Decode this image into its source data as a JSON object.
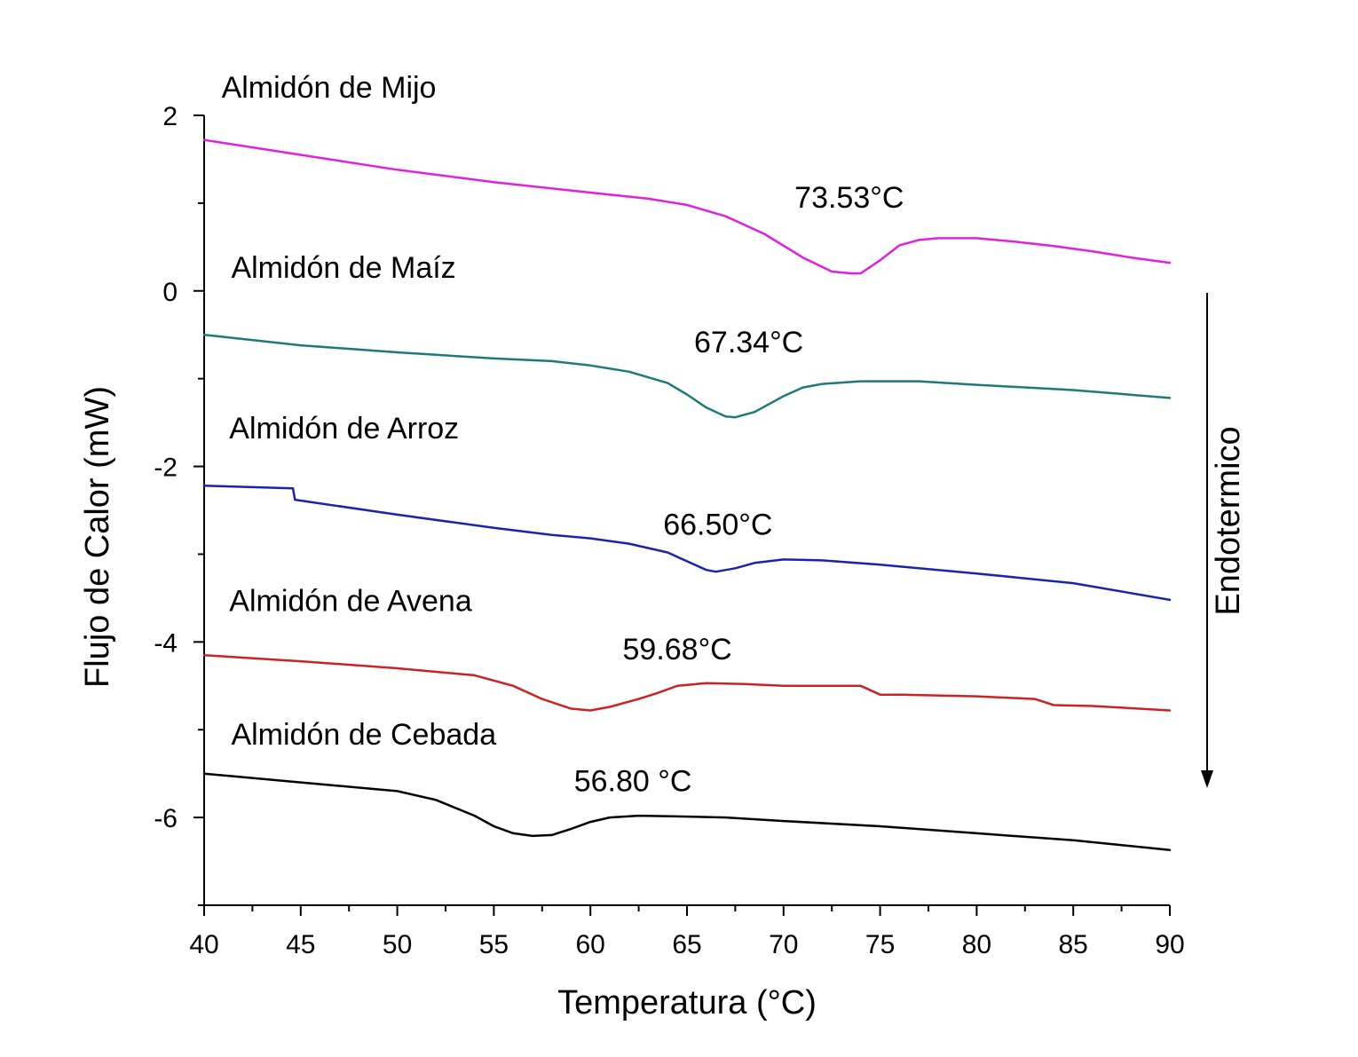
{
  "chart_data": {
    "type": "line",
    "xlabel": "Temperatura (°C)",
    "ylabel": "Flujo de Calor (mW)",
    "xlim": [
      40,
      90
    ],
    "ylim": [
      -7,
      2
    ],
    "x_ticks": [
      40,
      45,
      50,
      55,
      60,
      65,
      70,
      75,
      80,
      85,
      90
    ],
    "y_ticks": [
      -6,
      -4,
      -2,
      0,
      2
    ],
    "grid": false,
    "direction_label": "Endotermico",
    "series": [
      {
        "name": "Almidón de Mijo",
        "color": "#e020e0",
        "peak_label": "73.53°C",
        "peak_label_pos": [
          73.4,
          0.95
        ],
        "name_pos": [
          40.9,
          2.2
        ],
        "points": [
          [
            40,
            1.72
          ],
          [
            45,
            1.55
          ],
          [
            50,
            1.38
          ],
          [
            55,
            1.24
          ],
          [
            60,
            1.12
          ],
          [
            63,
            1.05
          ],
          [
            65,
            0.98
          ],
          [
            67,
            0.85
          ],
          [
            69,
            0.65
          ],
          [
            71,
            0.38
          ],
          [
            72.5,
            0.22
          ],
          [
            73.5,
            0.2
          ],
          [
            74,
            0.2
          ],
          [
            75,
            0.35
          ],
          [
            76,
            0.52
          ],
          [
            77,
            0.58
          ],
          [
            78,
            0.6
          ],
          [
            80,
            0.6
          ],
          [
            82,
            0.56
          ],
          [
            84,
            0.51
          ],
          [
            86,
            0.45
          ],
          [
            88,
            0.38
          ],
          [
            90,
            0.32
          ]
        ]
      },
      {
        "name": "Almidón de Maíz",
        "color": "#1c7a78",
        "peak_label": "67.34°C",
        "peak_label_pos": [
          68.2,
          -0.7
        ],
        "name_pos": [
          41.4,
          0.15
        ],
        "points": [
          [
            40,
            -0.5
          ],
          [
            45,
            -0.62
          ],
          [
            50,
            -0.7
          ],
          [
            55,
            -0.77
          ],
          [
            58,
            -0.8
          ],
          [
            60,
            -0.85
          ],
          [
            62,
            -0.92
          ],
          [
            64,
            -1.05
          ],
          [
            65,
            -1.18
          ],
          [
            66,
            -1.33
          ],
          [
            67,
            -1.43
          ],
          [
            67.5,
            -1.44
          ],
          [
            68.5,
            -1.38
          ],
          [
            70,
            -1.2
          ],
          [
            71,
            -1.1
          ],
          [
            72,
            -1.06
          ],
          [
            74,
            -1.03
          ],
          [
            77,
            -1.03
          ],
          [
            80,
            -1.07
          ],
          [
            85,
            -1.13
          ],
          [
            90,
            -1.22
          ]
        ]
      },
      {
        "name": "Almidón de Arroz",
        "color": "#1a22b0",
        "peak_label": "66.50°C",
        "peak_label_pos": [
          66.6,
          -2.78
        ],
        "name_pos": [
          41.3,
          -1.68
        ],
        "points": [
          [
            40,
            -2.22
          ],
          [
            44.6,
            -2.25
          ],
          [
            44.7,
            -2.38
          ],
          [
            50,
            -2.55
          ],
          [
            55,
            -2.7
          ],
          [
            58,
            -2.78
          ],
          [
            60,
            -2.82
          ],
          [
            62,
            -2.88
          ],
          [
            64,
            -2.98
          ],
          [
            65,
            -3.08
          ],
          [
            66,
            -3.18
          ],
          [
            66.5,
            -3.2
          ],
          [
            67.5,
            -3.16
          ],
          [
            68.5,
            -3.1
          ],
          [
            70,
            -3.06
          ],
          [
            72,
            -3.07
          ],
          [
            75,
            -3.12
          ],
          [
            80,
            -3.22
          ],
          [
            85,
            -3.33
          ],
          [
            90,
            -3.52
          ]
        ]
      },
      {
        "name": "Almidón de Avena",
        "color": "#cc2222",
        "peak_label": "59.68°C",
        "peak_label_pos": [
          64.5,
          -4.2
        ],
        "name_pos": [
          41.3,
          -3.65
        ],
        "points": [
          [
            40,
            -4.15
          ],
          [
            45,
            -4.22
          ],
          [
            50,
            -4.3
          ],
          [
            54,
            -4.38
          ],
          [
            56,
            -4.5
          ],
          [
            57.5,
            -4.65
          ],
          [
            59,
            -4.76
          ],
          [
            60,
            -4.78
          ],
          [
            61,
            -4.74
          ],
          [
            62.5,
            -4.65
          ],
          [
            63.5,
            -4.58
          ],
          [
            64.5,
            -4.5
          ],
          [
            66,
            -4.47
          ],
          [
            68,
            -4.48
          ],
          [
            70,
            -4.5
          ],
          [
            74,
            -4.5
          ],
          [
            75,
            -4.6
          ],
          [
            76,
            -4.6
          ],
          [
            80,
            -4.62
          ],
          [
            83,
            -4.65
          ],
          [
            84,
            -4.72
          ],
          [
            86,
            -4.73
          ],
          [
            90,
            -4.78
          ]
        ]
      },
      {
        "name": "Almidón de Cebada",
        "color": "#000000",
        "peak_label": "56.80 °C",
        "peak_label_pos": [
          62.2,
          -5.7
        ],
        "name_pos": [
          41.4,
          -5.17
        ],
        "points": [
          [
            40,
            -5.5
          ],
          [
            45,
            -5.6
          ],
          [
            50,
            -5.7
          ],
          [
            52,
            -5.8
          ],
          [
            54,
            -5.98
          ],
          [
            55,
            -6.1
          ],
          [
            56,
            -6.18
          ],
          [
            57,
            -6.21
          ],
          [
            58,
            -6.2
          ],
          [
            59,
            -6.13
          ],
          [
            60,
            -6.05
          ],
          [
            61,
            -6.0
          ],
          [
            62.5,
            -5.98
          ],
          [
            65,
            -5.99
          ],
          [
            67,
            -6.0
          ],
          [
            70,
            -6.04
          ],
          [
            75,
            -6.1
          ],
          [
            80,
            -6.18
          ],
          [
            85,
            -6.26
          ],
          [
            90,
            -6.37
          ]
        ]
      }
    ]
  }
}
